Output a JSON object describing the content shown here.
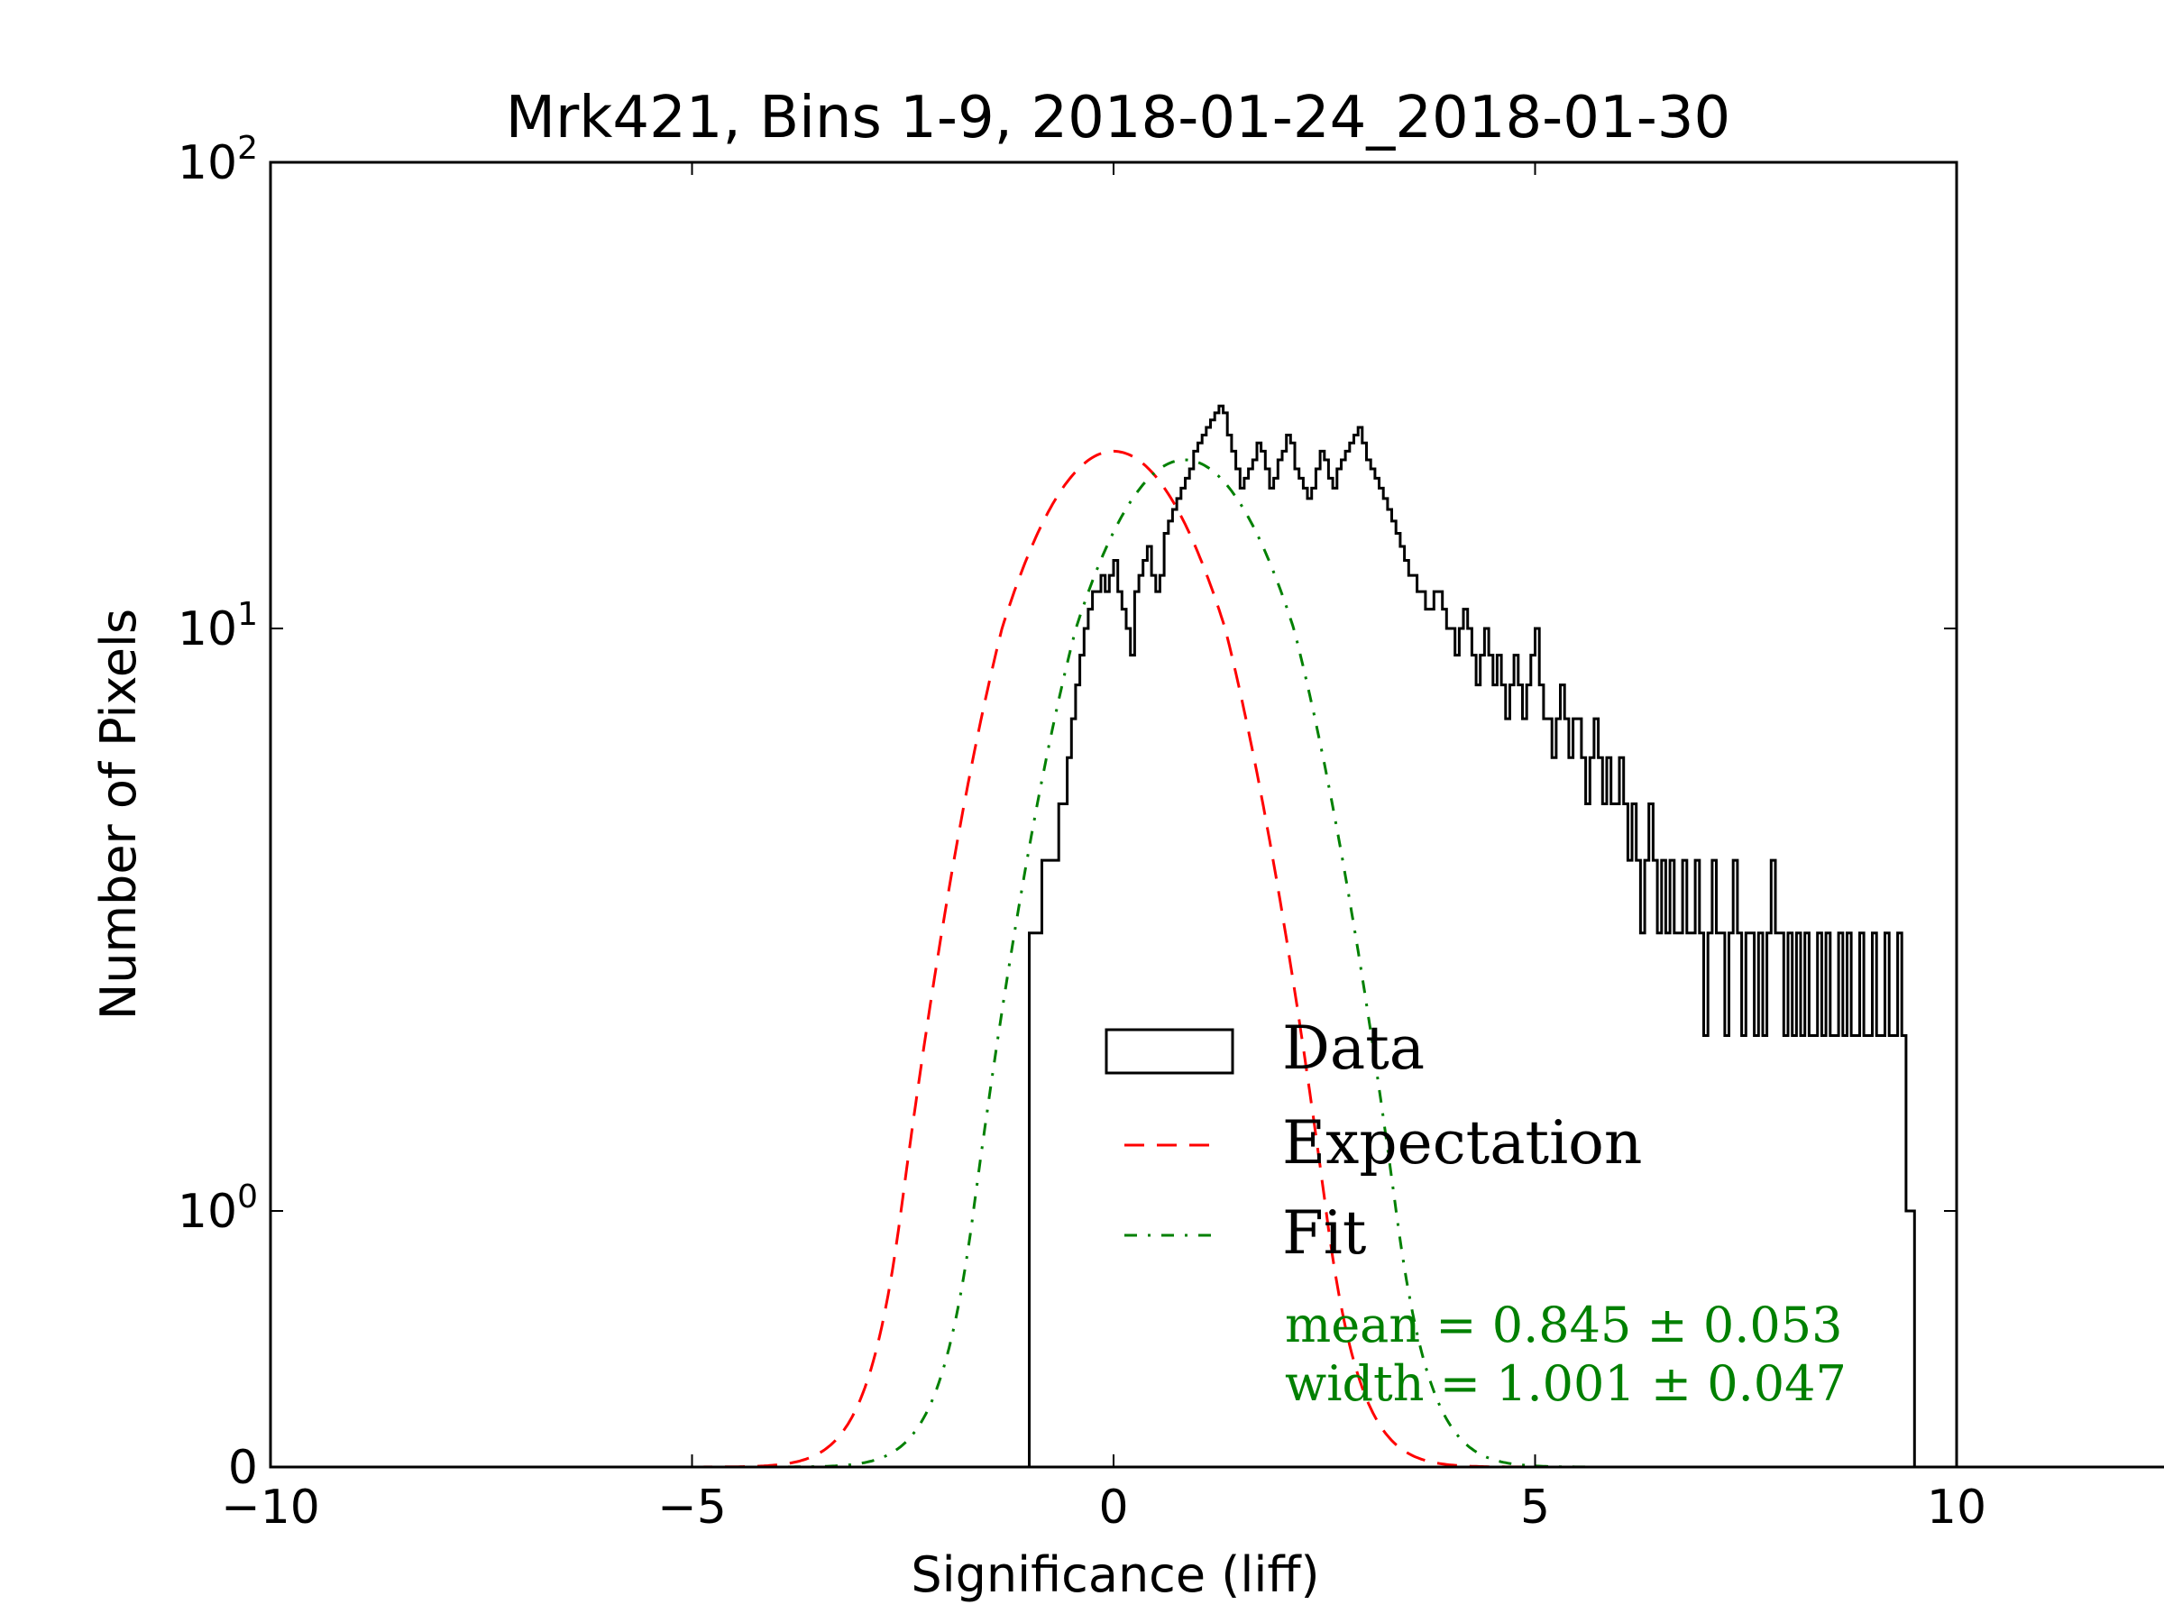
{
  "chart_data": {
    "type": "histogram",
    "title": "Mrk421, Bins 1-9, 2018-01-24_2018-01-30",
    "xlabel": "Significance (liff)",
    "ylabel": "Number of Pixels",
    "xlim": [
      -10,
      10
    ],
    "y_scale": "symlog",
    "ylim": [
      0,
      100
    ],
    "x_ticks": [
      "−10",
      "−5",
      "0",
      "5",
      "10"
    ],
    "x_tick_values": [
      -10,
      -5,
      0,
      5,
      10
    ],
    "y_ticks": [
      {
        "value": 0,
        "base": "0",
        "exp": ""
      },
      {
        "value": 1,
        "base": "10",
        "exp": "0"
      },
      {
        "value": 10,
        "base": "10",
        "exp": "1"
      },
      {
        "value": 100,
        "base": "10",
        "exp": "2"
      }
    ],
    "legend": {
      "position": "lower-right",
      "entries": [
        {
          "label": "Data",
          "style": "box",
          "color": "#000000"
        },
        {
          "label": "Expectation",
          "style": "dashed",
          "color": "#ff0000"
        },
        {
          "label": "Fit",
          "style": "dashdot",
          "color": "#008000"
        }
      ]
    },
    "annotations": [
      {
        "text": "mean = 0.845 ± 0.053",
        "color": "#008000"
      },
      {
        "text": "width = 1.001 ± 0.047",
        "color": "#008000"
      }
    ],
    "expectation": {
      "type": "gaussian",
      "mean": 0.0,
      "sigma": 1.0,
      "amplitude": 24,
      "color": "#ff0000"
    },
    "fit": {
      "type": "gaussian",
      "mean": 0.845,
      "sigma": 1.001,
      "amplitude": 23,
      "color": "#008000"
    },
    "series": [
      {
        "name": "Data",
        "bin_width": 0.05,
        "bin_start": -1.0,
        "values": [
          3,
          3,
          3,
          4,
          4,
          4,
          4,
          5,
          5,
          6,
          7,
          8,
          9,
          10,
          11,
          12,
          12,
          13,
          12,
          13,
          14,
          12,
          11,
          10,
          9,
          12,
          13,
          14,
          15,
          13,
          12,
          13,
          16,
          17,
          18,
          19,
          20,
          21,
          22,
          24,
          25,
          26,
          27,
          28,
          29,
          30,
          29,
          26,
          24,
          22,
          20,
          21,
          22,
          23,
          25,
          24,
          22,
          20,
          21,
          23,
          24,
          26,
          25,
          22,
          21,
          20,
          19,
          20,
          22,
          24,
          23,
          21,
          20,
          22,
          23,
          24,
          25,
          26,
          27,
          25,
          23,
          22,
          21,
          20,
          19,
          18,
          17,
          16,
          15,
          14,
          13,
          13,
          12,
          12,
          11,
          11,
          12,
          12,
          11,
          10,
          10,
          9,
          10,
          11,
          10,
          9,
          8,
          9,
          10,
          9,
          8,
          9,
          8,
          7,
          8,
          9,
          8,
          7,
          8,
          9,
          10,
          8,
          7,
          7,
          6,
          7,
          8,
          7,
          6,
          7,
          7,
          6,
          5,
          6,
          7,
          6,
          5,
          6,
          5,
          5,
          6,
          5,
          4,
          5,
          4,
          3,
          4,
          5,
          4,
          3,
          4,
          3,
          4,
          3,
          3,
          4,
          3,
          3,
          4,
          3,
          2,
          3,
          4,
          3,
          3,
          2,
          3,
          4,
          3,
          2,
          3,
          3,
          2,
          3,
          2,
          3,
          4,
          3,
          3,
          2,
          3,
          2,
          3,
          2,
          3,
          2,
          2,
          3,
          2,
          3,
          2,
          2,
          3,
          2,
          3,
          2,
          2,
          3,
          2,
          2,
          3,
          2,
          2,
          3,
          2,
          2,
          3,
          2,
          1,
          1,
          0,
          0,
          0,
          0,
          0,
          0,
          0,
          0,
          0,
          0,
          0,
          0,
          0,
          0,
          0,
          0,
          0,
          0,
          0,
          0,
          0,
          0,
          0,
          0,
          0,
          0,
          0,
          0,
          0,
          0,
          0,
          0,
          0,
          0,
          0,
          0,
          0,
          0,
          0,
          0,
          0,
          0,
          0,
          0,
          0,
          0,
          0,
          0,
          0,
          0,
          0,
          0,
          0,
          0,
          0,
          0,
          0,
          0,
          0,
          0,
          0,
          0,
          0,
          0,
          0,
          0,
          0,
          0,
          0,
          0,
          0,
          0,
          0,
          0,
          0,
          0,
          0,
          0,
          0,
          0,
          0,
          0,
          0,
          0,
          0,
          0,
          0,
          0,
          0,
          0,
          0,
          0,
          0,
          0,
          0,
          0,
          0,
          0,
          0,
          0,
          0,
          0,
          0,
          0,
          0,
          0,
          0,
          0,
          0,
          0,
          0,
          0,
          0,
          0,
          0,
          0,
          0,
          0,
          0,
          0,
          0,
          0,
          0,
          0,
          0,
          0,
          0,
          0,
          0,
          0,
          0,
          0,
          0,
          0,
          0,
          0,
          0,
          0,
          0,
          0,
          0,
          0,
          0,
          0,
          0,
          0,
          0,
          0,
          0,
          0,
          0,
          0,
          0,
          0,
          0,
          0,
          0,
          0,
          0,
          0,
          0,
          0,
          0,
          0,
          0,
          0,
          0,
          0,
          0,
          0,
          0,
          0,
          0,
          0,
          0,
          0,
          0,
          0,
          0,
          0,
          0,
          0,
          0,
          0,
          0,
          0,
          0,
          0,
          0,
          0,
          0,
          0,
          0
        ]
      }
    ]
  }
}
